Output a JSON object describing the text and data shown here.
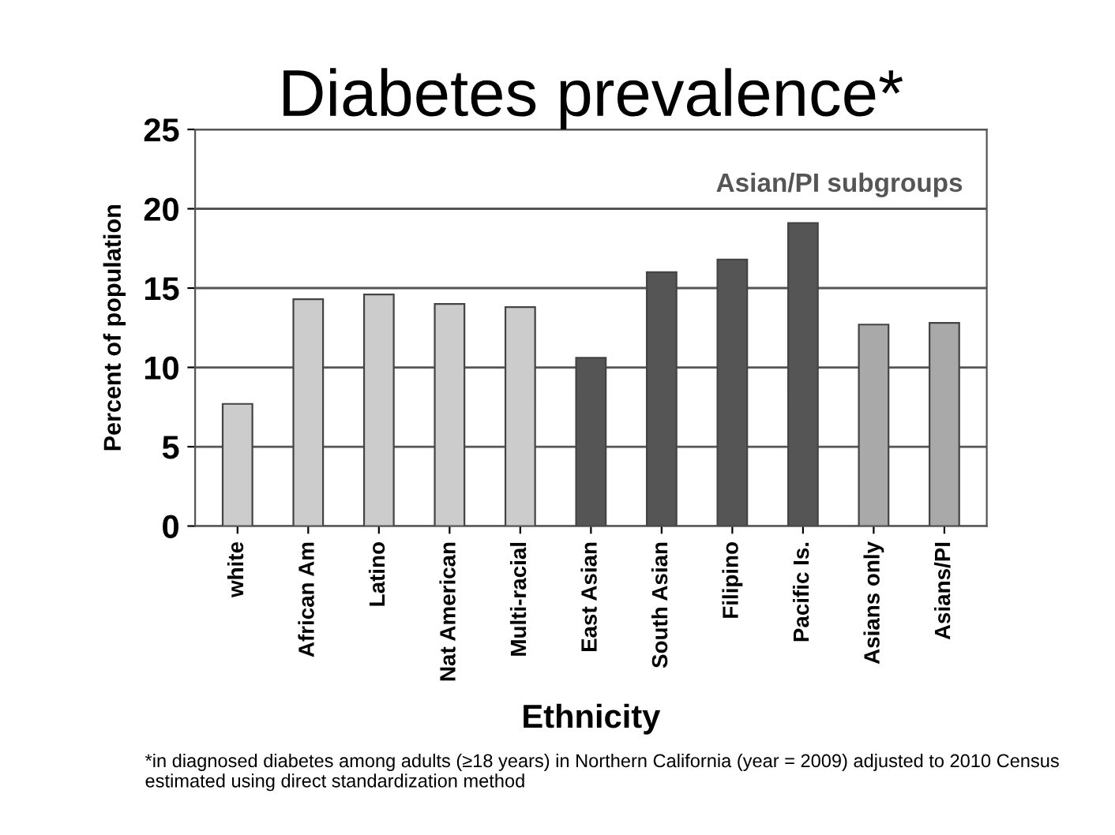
{
  "chart_data": {
    "type": "bar",
    "title": "Diabetes prevalence*",
    "xlabel": "Ethnicity",
    "ylabel": "Percent of population",
    "categories": [
      "white",
      "African Am",
      "Latino",
      "Nat American",
      "Multi-racial",
      "East Asian",
      "South Asian",
      "Filipino",
      "Pacific Is.",
      "Asians only",
      "Asians/PI"
    ],
    "values": [
      7.7,
      14.3,
      14.6,
      14.0,
      13.8,
      10.6,
      16.0,
      16.8,
      19.1,
      12.7,
      12.8
    ],
    "colors": [
      "#cccccc",
      "#cccccc",
      "#cccccc",
      "#cccccc",
      "#cccccc",
      "#555555",
      "#555555",
      "#555555",
      "#555555",
      "#a9a9a9",
      "#a9a9a9"
    ],
    "ylim": [
      0,
      25
    ],
    "yticks": [
      0,
      5,
      10,
      15,
      20,
      25
    ],
    "grid": "y",
    "annotations": [
      "Asian/PI subgroups",
      "*in diagnosed diabetes among adults (≥18 years) in Northern California (year = 2009) adjusted to 2010 Census estimated using direct standardization method"
    ]
  }
}
